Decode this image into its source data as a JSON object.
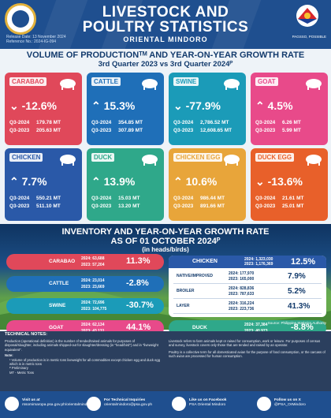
{
  "header": {
    "title_line1": "LIVESTOCK AND",
    "title_line2": "POULTRY STATISTICS",
    "subtitle": "ORIENTAL MINDORO",
    "release_date": "Release Date: 13 November 2024",
    "reference_no": "Reference No.: 2024-IG-094",
    "pso_label": "PAGSSO, POSSIBLE"
  },
  "section1": {
    "title": "VOLUME OF PRODUCTIONᵀᴹ AND YEAR-ON-YEAR GROWTH RATE",
    "subtitle": "3rd Quarter 2023  vs 3rd Quarter 2024ᴾ"
  },
  "cards": [
    {
      "name": "CARABAO",
      "rate": "-12.6%",
      "q2024_label": "Q3-2024",
      "q2024": "179.78 MT",
      "q2023_label": "Q3-2023",
      "q2023": "205.63 MT",
      "color": "#e0485a",
      "direction": "down"
    },
    {
      "name": "CATTLE",
      "rate": "15.3%",
      "q2024_label": "Q3-2024",
      "q2024": "354.85 MT",
      "q2023_label": "Q3-2023",
      "q2023": "307.89 MT",
      "color": "#1f6fb8",
      "direction": "up"
    },
    {
      "name": "SWINE",
      "rate": "-77.9%",
      "q2024_label": "Q3-2024",
      "q2024": "2,786.52 MT",
      "q2023_label": "Q3-2023",
      "q2023": "12,608.65 MT",
      "color": "#1b9bb8",
      "direction": "down"
    },
    {
      "name": "GOAT",
      "rate": "4.5%",
      "q2024_label": "Q3-2024",
      "q2024": "6.26 MT",
      "q2023_label": "Q3-2023",
      "q2023": "5.99 MT",
      "color": "#e84a8a",
      "direction": "up"
    },
    {
      "name": "CHICKEN",
      "rate": "7.7%",
      "q2024_label": "Q3-2024",
      "q2024": "550.21 MT",
      "q2023_label": "Q3-2023",
      "q2023": "511.10 MT",
      "color": "#2a59a8",
      "direction": "up"
    },
    {
      "name": "DUCK",
      "rate": "13.9%",
      "q2024_label": "Q3-2024",
      "q2024": "15.03 MT",
      "q2023_label": "Q3-2023",
      "q2023": "13.20 MT",
      "color": "#2fa88a",
      "direction": "up"
    },
    {
      "name": "CHICKEN EGG",
      "rate": "10.6%",
      "q2024_label": "Q3-2024",
      "q2024": "986.44 MT",
      "q2023_label": "Q3-2023",
      "q2023": "891.66 MT",
      "color": "#e8a53a",
      "direction": "up"
    },
    {
      "name": "DUCK EGG",
      "rate": "-13.6%",
      "q2024_label": "Q3-2024",
      "q2024": "21.61 MT",
      "q2023_label": "Q3-2023",
      "q2023": "25.01 MT",
      "color": "#e8602a",
      "direction": "down"
    }
  ],
  "inventory": {
    "title_line1": "INVENTORY AND YEAR-ON-YEAR GROWTH RATE",
    "title_line2": "AS OF 01 OCTOBER 2024ᴾ",
    "unit": "(in heads/birds)",
    "rows": [
      {
        "name": "CARABAO",
        "y2024": "63,688",
        "y2023": "57,204",
        "rate": "11.3%",
        "color": "#e0485a"
      },
      {
        "name": "CATTLE",
        "y2024": "23,014",
        "y2023": "23,669",
        "rate": "-2.8%",
        "color": "#1f6fb8"
      },
      {
        "name": "SWINE",
        "y2024": "72,696",
        "y2023": "104,775",
        "rate": "-30.7%",
        "color": "#1b9bb8"
      },
      {
        "name": "GOAT",
        "y2024": "62,134",
        "y2023": "43,131",
        "rate": "44.1%",
        "color": "#e84a8a"
      }
    ],
    "chicken": {
      "name": "CHICKEN",
      "y2024": "1,323,030",
      "y2023": "1,176,369",
      "rate": "12.5%",
      "sub": [
        {
          "name": "NATIVE/IMPROVED",
          "y2024": "177,970",
          "y2023": "165,000",
          "rate": "7.9%"
        },
        {
          "name": "BROILER",
          "y2024": "828,836",
          "y2023": "787,633",
          "rate": "5.2%"
        },
        {
          "name": "LAYER",
          "y2024": "316,224",
          "y2023": "223,736",
          "rate": "41.3%"
        }
      ]
    },
    "duck": {
      "name": "DUCK",
      "y2024": "37,384",
      "y2023": "40,973",
      "rate": "-8.8%"
    },
    "year2024": "2024:",
    "year2023": "2023:",
    "source": "Source: Philippine Statistics Authority"
  },
  "tech": {
    "heading": "TECHNICAL NOTES:",
    "left_text": "Production (operational definition) is the number of tended/raised animals for purposes of disposal/slaughter, including animals shipped-out for slaughter/dressing (in \"head/bird\") and in \"liveweight equivalent\".",
    "note_label": "Note:",
    "notes": [
      "¹ Volume of production is in metric tons liveweight for all commodities except chicken egg and duck egg which is in metric tons",
      "ᴾ Preliminary",
      "MT - Metric Tons"
    ],
    "right_text1": "Livestock refers to farm animals kept or raised for consumption, work or leisure. For purposes of census and survey, livestock covers only those that are tended and raised by an operator.",
    "right_text2": "Poultry is a collective term for all domesticated avian for the purpose of food consumption, or the carcass of such avian are processed for human consumption."
  },
  "footer": {
    "visit_label": "Visit us at",
    "visit_url": "rssomimaropa.psa.gov.ph/orientalmindoro",
    "tech_label": "For Technical Inquiries",
    "tech_email": "orientalmindoro@psa.gov.ph",
    "fb_label": "Like us on Facebook",
    "fb_handle": "PSA Oriental Mindoro",
    "x_label": "Follow us on X",
    "x_handle": "@PSA_OrMindoro"
  }
}
